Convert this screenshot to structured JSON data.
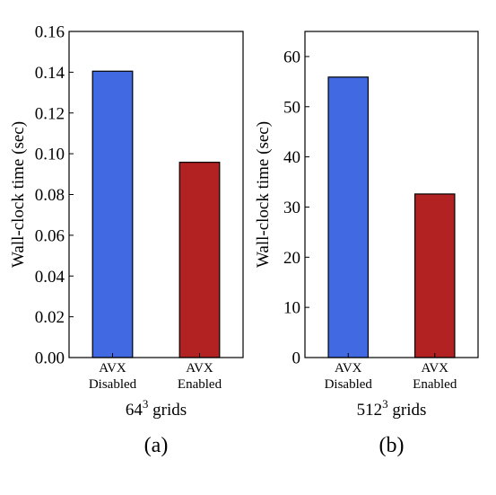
{
  "chart_data": [
    {
      "type": "bar",
      "panel_label": "(a)",
      "categories": [
        [
          "AVX",
          "Disabled"
        ],
        [
          "AVX",
          "Enabled"
        ]
      ],
      "values": [
        0.1405,
        0.0958
      ],
      "colors": [
        "#4169E1",
        "#B22222"
      ],
      "ylabel": "Wall-clock time (sec)",
      "xlabel_base": "64",
      "xlabel_exp": "3",
      "xlabel_suffix": " grids",
      "ylim": [
        0,
        0.16
      ],
      "yticks": [
        0,
        0.02,
        0.04,
        0.06,
        0.08,
        0.1,
        0.12,
        0.14,
        0.16
      ],
      "ytick_labels": [
        "0.00",
        "0.02",
        "0.04",
        "0.06",
        "0.08",
        "0.10",
        "0.12",
        "0.14",
        "0.16"
      ],
      "grid": false
    },
    {
      "type": "bar",
      "panel_label": "(b)",
      "categories": [
        [
          "AVX",
          "Disabled"
        ],
        [
          "AVX",
          "Enabled"
        ]
      ],
      "values": [
        55.9,
        32.6
      ],
      "colors": [
        "#4169E1",
        "#B22222"
      ],
      "ylabel": "Wall-clock time (sec)",
      "xlabel_base": "512",
      "xlabel_exp": "3",
      "xlabel_suffix": " grids",
      "ylim": [
        0,
        65
      ],
      "yticks": [
        0,
        10,
        20,
        30,
        40,
        50,
        60
      ],
      "ytick_labels": [
        "0",
        "10",
        "20",
        "30",
        "40",
        "50",
        "60"
      ],
      "grid": false
    }
  ]
}
